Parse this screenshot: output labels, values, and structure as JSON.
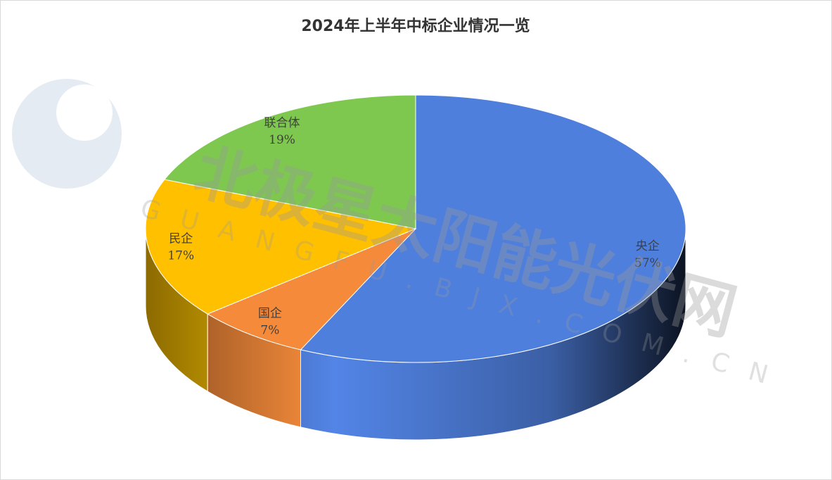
{
  "chart_data": {
    "type": "pie3d",
    "title": "2024年上半年中标企业情况一览",
    "categories": [
      "央企",
      "国企",
      "民企",
      "联合体"
    ],
    "values": [
      57,
      7,
      17,
      19
    ],
    "value_labels": [
      "57%",
      "7%",
      "17%",
      "19%"
    ],
    "colors": [
      "#4f7fdc",
      "#f58a3a",
      "#ffc000",
      "#7ec850"
    ],
    "watermark": "北极星太阳能光伏网",
    "watermark_url": "GUANGFU.BJX.COM.CN"
  }
}
